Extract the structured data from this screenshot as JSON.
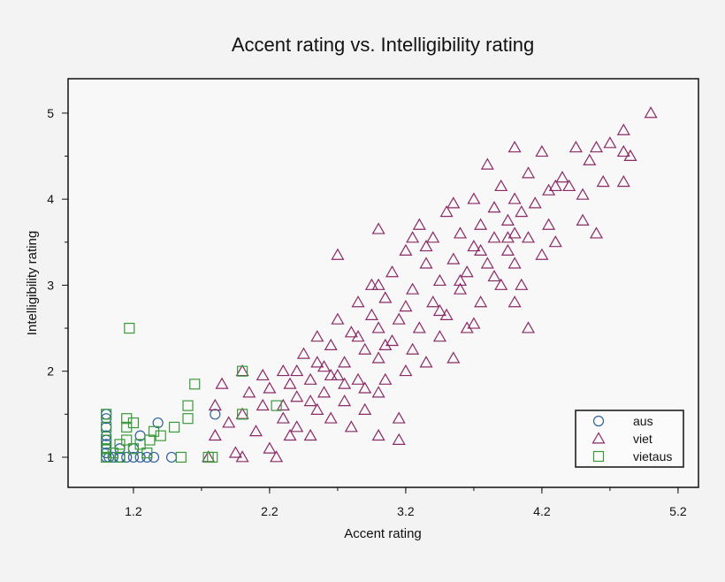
{
  "chart_data": {
    "type": "scatter",
    "title": "Accent rating vs. Intelligibility rating",
    "xlabel": "Accent rating",
    "ylabel": "Intelligibility rating",
    "xlim": [
      0.72,
      5.35
    ],
    "ylim": [
      0.65,
      5.4
    ],
    "x_ticks": [
      "1.2",
      "2.2",
      "3.2",
      "4.2",
      "5.2"
    ],
    "x_tick_values": [
      1.2,
      2.2,
      3.2,
      4.2,
      5.2
    ],
    "y_ticks": [
      "1",
      "2",
      "3",
      "4",
      "5"
    ],
    "y_tick_values": [
      1,
      2,
      3,
      4,
      5
    ],
    "grid": false,
    "legend_position": "bottom-right",
    "series": [
      {
        "name": "aus",
        "marker": "circle",
        "color": "#2f5f9e",
        "points": [
          [
            1.0,
            1.0
          ],
          [
            1.0,
            1.05
          ],
          [
            1.0,
            1.1
          ],
          [
            1.0,
            1.15
          ],
          [
            1.0,
            1.2
          ],
          [
            1.0,
            1.25
          ],
          [
            1.0,
            1.35
          ],
          [
            1.0,
            1.45
          ],
          [
            1.0,
            1.5
          ],
          [
            1.02,
            1.0
          ],
          [
            1.05,
            1.0
          ],
          [
            1.1,
            1.0
          ],
          [
            1.15,
            1.0
          ],
          [
            1.2,
            1.0
          ],
          [
            1.25,
            1.0
          ],
          [
            1.3,
            1.0
          ],
          [
            1.35,
            1.0
          ],
          [
            1.1,
            1.1
          ],
          [
            1.2,
            1.1
          ],
          [
            1.25,
            1.25
          ],
          [
            1.38,
            1.4
          ],
          [
            1.48,
            1.0
          ],
          [
            1.8,
            1.5
          ]
        ]
      },
      {
        "name": "viet",
        "marker": "triangle",
        "color": "#8a2a66",
        "points": [
          [
            1.75,
            1.0
          ],
          [
            1.8,
            1.25
          ],
          [
            1.8,
            1.6
          ],
          [
            1.85,
            1.85
          ],
          [
            1.9,
            1.4
          ],
          [
            1.95,
            1.05
          ],
          [
            2.0,
            1.0
          ],
          [
            2.0,
            1.5
          ],
          [
            2.0,
            2.0
          ],
          [
            2.05,
            1.75
          ],
          [
            2.1,
            1.3
          ],
          [
            2.15,
            1.6
          ],
          [
            2.2,
            1.1
          ],
          [
            2.2,
            1.8
          ],
          [
            2.25,
            1.0
          ],
          [
            2.3,
            1.45
          ],
          [
            2.3,
            2.0
          ],
          [
            2.35,
            1.85
          ],
          [
            2.4,
            1.35
          ],
          [
            2.4,
            1.7
          ],
          [
            2.45,
            2.2
          ],
          [
            2.5,
            1.25
          ],
          [
            2.5,
            1.9
          ],
          [
            2.55,
            1.55
          ],
          [
            2.55,
            2.4
          ],
          [
            2.6,
            1.75
          ],
          [
            2.6,
            2.05
          ],
          [
            2.65,
            1.45
          ],
          [
            2.65,
            2.3
          ],
          [
            2.7,
            1.95
          ],
          [
            2.7,
            2.6
          ],
          [
            2.75,
            1.65
          ],
          [
            2.75,
            2.1
          ],
          [
            2.8,
            1.35
          ],
          [
            2.8,
            2.45
          ],
          [
            2.85,
            1.9
          ],
          [
            2.85,
            2.8
          ],
          [
            2.9,
            1.55
          ],
          [
            2.9,
            2.25
          ],
          [
            2.95,
            2.65
          ],
          [
            3.0,
            1.25
          ],
          [
            3.0,
            1.75
          ],
          [
            3.0,
            2.15
          ],
          [
            3.0,
            2.5
          ],
          [
            3.0,
            3.0
          ],
          [
            3.0,
            3.65
          ],
          [
            3.05,
            1.9
          ],
          [
            3.05,
            2.85
          ],
          [
            3.1,
            2.35
          ],
          [
            3.1,
            3.15
          ],
          [
            3.15,
            1.45
          ],
          [
            3.15,
            2.6
          ],
          [
            3.2,
            2.0
          ],
          [
            3.2,
            3.4
          ],
          [
            3.25,
            2.25
          ],
          [
            3.25,
            2.95
          ],
          [
            3.3,
            2.5
          ],
          [
            3.3,
            3.7
          ],
          [
            3.35,
            2.1
          ],
          [
            3.35,
            3.25
          ],
          [
            3.4,
            2.8
          ],
          [
            3.4,
            3.55
          ],
          [
            3.45,
            2.4
          ],
          [
            3.45,
            3.05
          ],
          [
            3.5,
            2.65
          ],
          [
            3.5,
            3.85
          ],
          [
            3.55,
            2.15
          ],
          [
            3.55,
            3.3
          ],
          [
            3.6,
            2.95
          ],
          [
            3.6,
            3.6
          ],
          [
            3.65,
            2.5
          ],
          [
            3.65,
            3.15
          ],
          [
            3.7,
            3.45
          ],
          [
            3.7,
            4.0
          ],
          [
            3.75,
            2.8
          ],
          [
            3.75,
            3.7
          ],
          [
            3.8,
            3.25
          ],
          [
            3.8,
            4.4
          ],
          [
            3.85,
            3.55
          ],
          [
            3.85,
            3.9
          ],
          [
            3.9,
            3.0
          ],
          [
            3.9,
            4.15
          ],
          [
            3.95,
            3.4
          ],
          [
            3.95,
            3.75
          ],
          [
            4.0,
            2.8
          ],
          [
            4.0,
            3.25
          ],
          [
            4.0,
            3.6
          ],
          [
            4.0,
            4.0
          ],
          [
            4.0,
            4.6
          ],
          [
            4.05,
            3.85
          ],
          [
            4.1,
            3.55
          ],
          [
            4.1,
            4.3
          ],
          [
            4.15,
            3.95
          ],
          [
            4.2,
            3.35
          ],
          [
            4.2,
            4.55
          ],
          [
            4.25,
            3.7
          ],
          [
            4.25,
            4.1
          ],
          [
            4.3,
            3.5
          ],
          [
            4.35,
            4.25
          ],
          [
            4.4,
            4.15
          ],
          [
            4.45,
            4.6
          ],
          [
            4.5,
            3.75
          ],
          [
            4.5,
            4.05
          ],
          [
            4.55,
            4.45
          ],
          [
            4.6,
            3.6
          ],
          [
            4.6,
            4.6
          ],
          [
            4.65,
            4.2
          ],
          [
            4.7,
            4.65
          ],
          [
            4.8,
            4.2
          ],
          [
            4.8,
            4.55
          ],
          [
            4.85,
            4.5
          ],
          [
            4.8,
            4.8
          ],
          [
            5.0,
            5.0
          ],
          [
            4.1,
            2.5
          ],
          [
            2.7,
            3.35
          ],
          [
            3.15,
            1.2
          ],
          [
            2.4,
            2.0
          ],
          [
            2.3,
            1.6
          ],
          [
            2.9,
            1.8
          ],
          [
            3.25,
            3.55
          ],
          [
            3.55,
            3.95
          ],
          [
            3.35,
            3.45
          ],
          [
            2.85,
            2.4
          ],
          [
            3.05,
            2.3
          ],
          [
            2.55,
            2.1
          ],
          [
            2.95,
            3.0
          ],
          [
            3.6,
            3.05
          ],
          [
            3.75,
            3.4
          ],
          [
            3.85,
            3.1
          ],
          [
            2.35,
            1.25
          ],
          [
            2.15,
            1.95
          ],
          [
            2.5,
            1.65
          ],
          [
            2.75,
            1.85
          ],
          [
            3.45,
            2.7
          ],
          [
            3.7,
            2.55
          ],
          [
            3.95,
            3.55
          ],
          [
            4.3,
            4.15
          ],
          [
            4.05,
            3.0
          ],
          [
            3.2,
            2.75
          ],
          [
            2.65,
            1.95
          ]
        ]
      },
      {
        "name": "vietaus",
        "marker": "square",
        "color": "#3a9a3a",
        "points": [
          [
            1.0,
            1.0
          ],
          [
            1.0,
            1.1
          ],
          [
            1.0,
            1.2
          ],
          [
            1.0,
            1.35
          ],
          [
            1.0,
            1.5
          ],
          [
            1.05,
            1.05
          ],
          [
            1.1,
            1.15
          ],
          [
            1.1,
            1.0
          ],
          [
            1.15,
            1.2
          ],
          [
            1.15,
            1.35
          ],
          [
            1.15,
            1.45
          ],
          [
            1.17,
            2.5
          ],
          [
            1.2,
            1.1
          ],
          [
            1.2,
            1.4
          ],
          [
            1.25,
            1.15
          ],
          [
            1.3,
            1.05
          ],
          [
            1.32,
            1.2
          ],
          [
            1.35,
            1.3
          ],
          [
            1.4,
            1.25
          ],
          [
            1.5,
            1.35
          ],
          [
            1.55,
            1.0
          ],
          [
            1.6,
            1.6
          ],
          [
            1.65,
            1.85
          ],
          [
            1.75,
            1.0
          ],
          [
            1.78,
            1.0
          ],
          [
            2.0,
            2.0
          ],
          [
            2.0,
            1.5
          ],
          [
            2.25,
            1.6
          ],
          [
            1.6,
            1.45
          ]
        ]
      }
    ]
  }
}
